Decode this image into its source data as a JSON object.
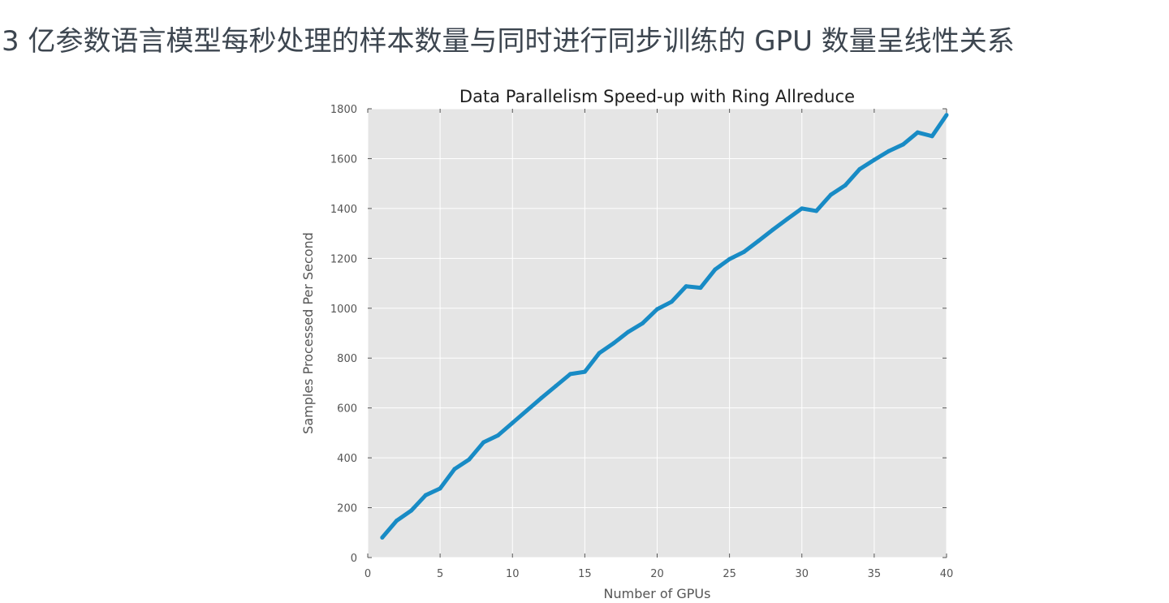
{
  "page": {
    "caption": "3 亿参数语言模型每秒处理的样本数量与同时进行同步训练的 GPU 数量呈线性关系"
  },
  "colors": {
    "plot_background": "#e5e5e5",
    "grid": "#ffffff",
    "line": "#188bc5",
    "tick_text": "#555555"
  },
  "chart_data": {
    "type": "line",
    "title": "Data Parallelism Speed-up with Ring Allreduce",
    "xlabel": "Number of GPUs",
    "ylabel": "Samples Processed Per Second",
    "xlim": [
      0,
      40
    ],
    "ylim": [
      0,
      1800
    ],
    "xticks": [
      "0",
      "5",
      "10",
      "15",
      "20",
      "25",
      "30",
      "35",
      "40"
    ],
    "yticks": [
      "0",
      "200",
      "400",
      "600",
      "800",
      "1000",
      "1200",
      "1400",
      "1600",
      "1800"
    ],
    "grid": true,
    "legend": "none",
    "x": [
      1,
      2,
      3,
      4,
      5,
      6,
      7,
      8,
      9,
      10,
      11,
      12,
      13,
      14,
      15,
      16,
      17,
      18,
      19,
      20,
      21,
      22,
      23,
      24,
      25,
      26,
      27,
      28,
      29,
      30,
      31,
      32,
      33,
      34,
      35,
      36,
      37,
      38,
      39,
      40
    ],
    "series": [
      {
        "values": [
          80,
          148,
          188,
          250,
          277,
          355,
          393,
          462,
          490,
          540,
          590,
          640,
          688,
          736,
          745,
          820,
          860,
          905,
          940,
          996,
          1026,
          1088,
          1082,
          1155,
          1197,
          1226,
          1270,
          1315,
          1358,
          1400,
          1390,
          1455,
          1493,
          1558,
          1595,
          1630,
          1657,
          1705,
          1690,
          1775
        ]
      }
    ]
  }
}
